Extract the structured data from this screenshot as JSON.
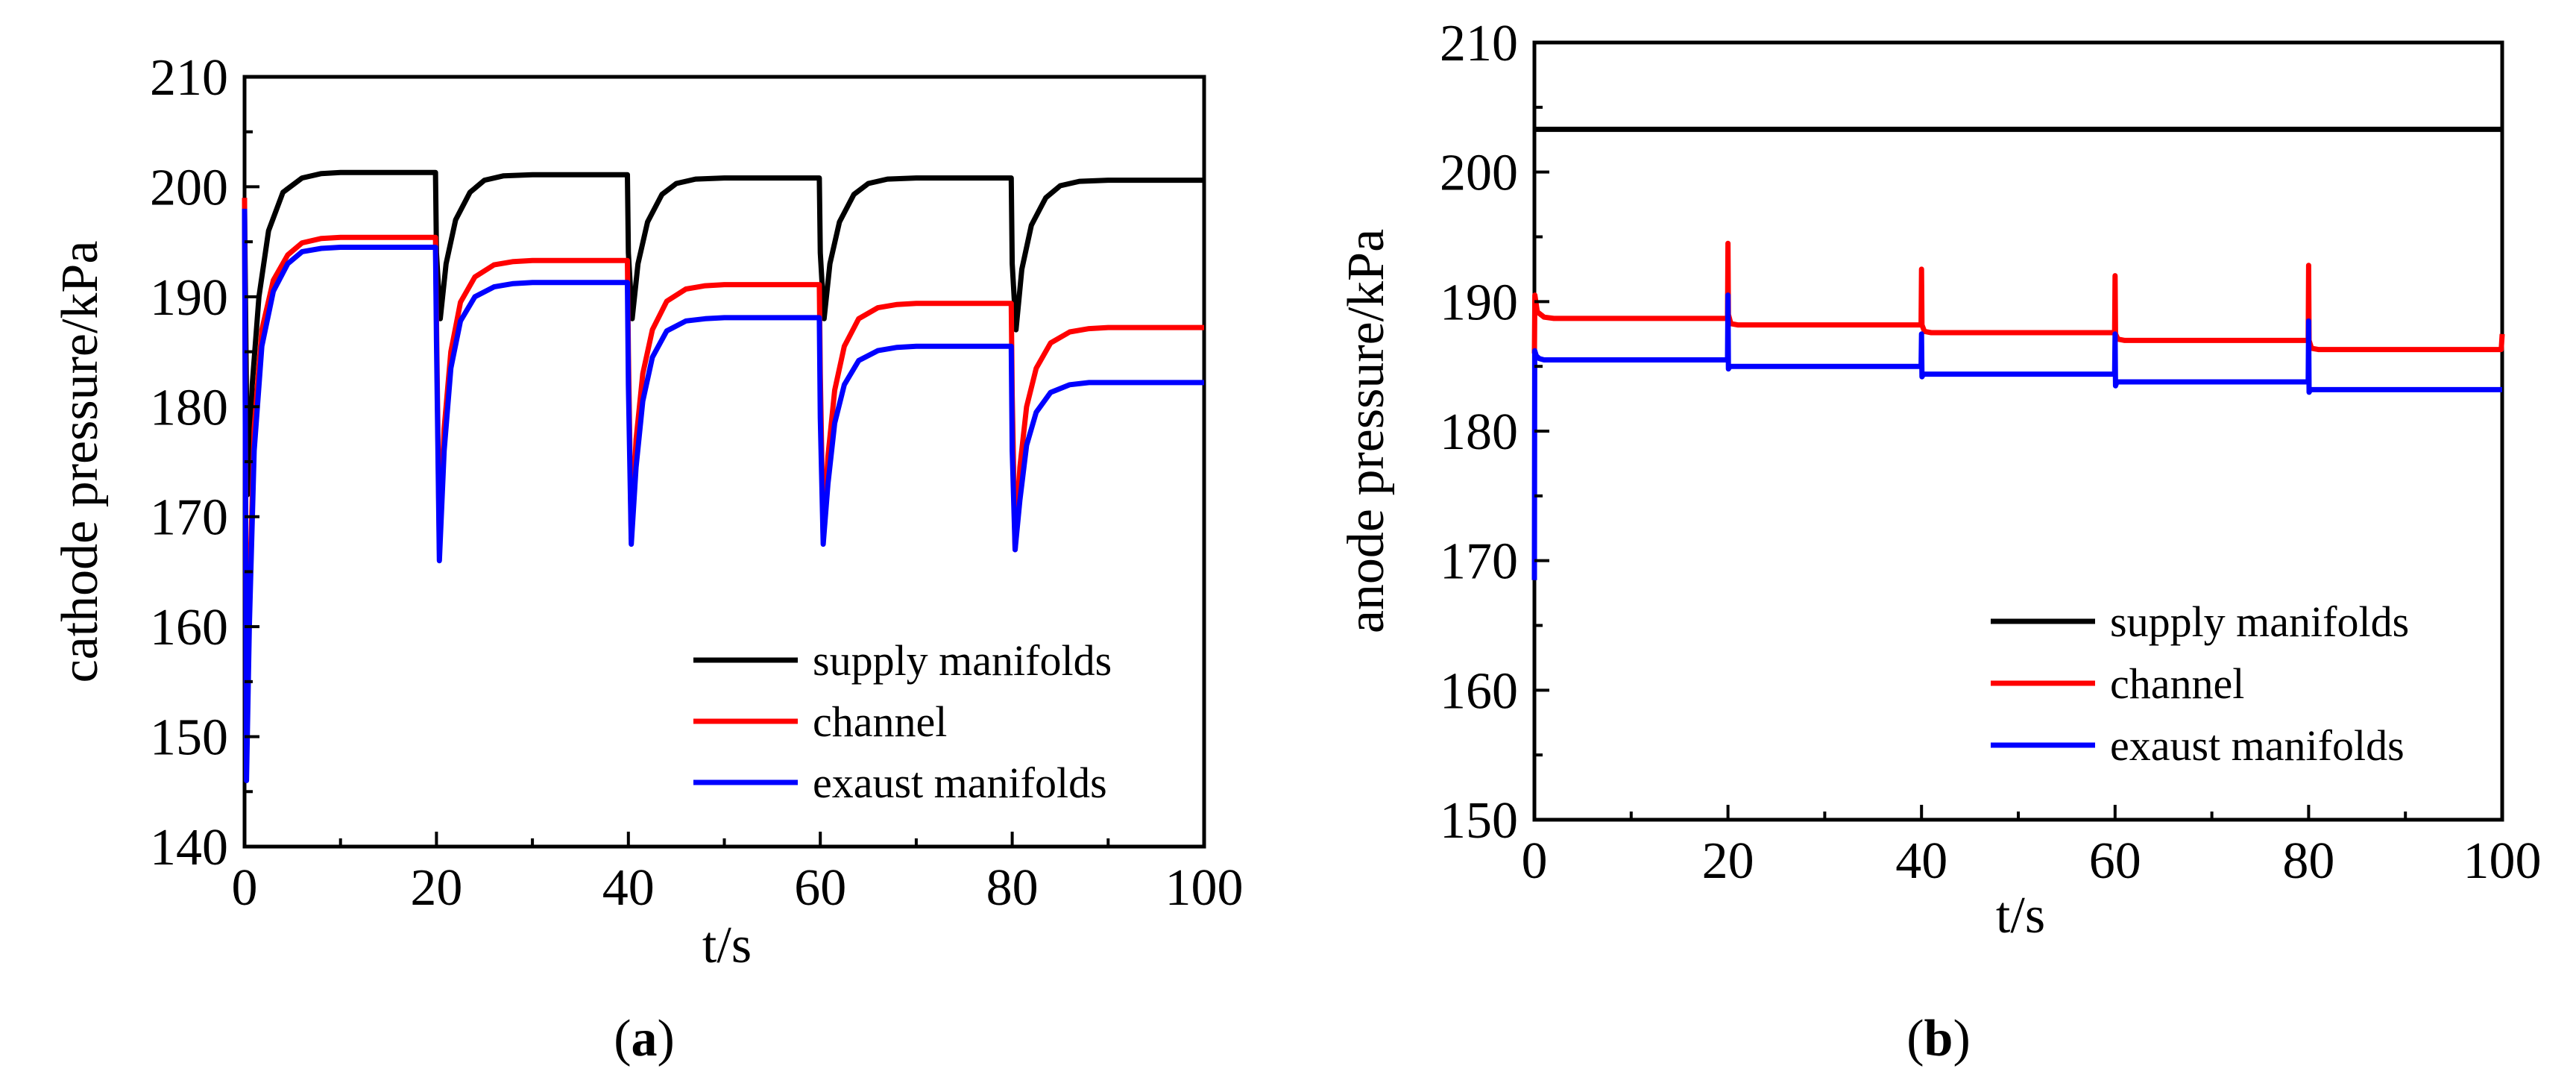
{
  "chart_data": [
    {
      "type": "line",
      "caption": {
        "open": "(",
        "letter": "a",
        "close": ")"
      },
      "xlabel": "t/s",
      "ylabel": "cathode pressure/kPa",
      "xlim": [
        0,
        100
      ],
      "ylim": [
        140,
        210
      ],
      "xticks": [
        "0",
        "20",
        "40",
        "60",
        "80",
        "100"
      ],
      "yticks": [
        "140",
        "150",
        "160",
        "170",
        "180",
        "190",
        "200",
        "210"
      ],
      "legend_position": "bottom-right",
      "series": [
        {
          "name": "supply manifolds",
          "color": "#000000",
          "x": [
            0,
            0.3,
            0.8,
            1.5,
            2.5,
            4,
            6,
            8,
            10,
            19.9,
            20,
            20.4,
            21,
            22,
            23.5,
            25,
            27,
            30,
            39.9,
            40,
            40.4,
            41,
            42,
            43.5,
            45,
            47,
            50,
            59.9,
            60,
            60.4,
            61,
            62,
            63.5,
            65,
            67,
            70,
            79.9,
            80,
            80.4,
            81,
            82,
            83.5,
            85,
            87,
            90,
            100
          ],
          "values": [
            198,
            172,
            182,
            190,
            196,
            199.5,
            200.8,
            201.2,
            201.3,
            201.3,
            194,
            188,
            193,
            197,
            199.5,
            200.6,
            201,
            201.1,
            201.1,
            194,
            188,
            193,
            196.8,
            199.3,
            200.3,
            200.7,
            200.8,
            200.8,
            194,
            188,
            193,
            196.8,
            199.3,
            200.3,
            200.7,
            200.8,
            200.8,
            193,
            187,
            192.5,
            196.5,
            199,
            200.1,
            200.5,
            200.6,
            200.6
          ]
        },
        {
          "name": "channel",
          "color": "#ff0000",
          "x": [
            0,
            0.2,
            0.5,
            1,
            1.8,
            3,
            4.5,
            6,
            8,
            10,
            19.9,
            20,
            20.3,
            20.8,
            21.5,
            22.5,
            24,
            26,
            28,
            30,
            39.9,
            40,
            40.3,
            40.8,
            41.5,
            42.5,
            44,
            46,
            48,
            50,
            59.9,
            60,
            60.3,
            60.8,
            61.5,
            62.5,
            64,
            66,
            68,
            70,
            79.9,
            80,
            80.3,
            80.8,
            81.5,
            82.5,
            84,
            86,
            88,
            90,
            100
          ],
          "values": [
            199,
            150,
            162,
            178,
            187,
            191.5,
            193.8,
            194.9,
            195.3,
            195.4,
            195.4,
            188,
            167,
            178,
            185,
            189.5,
            191.8,
            192.9,
            193.2,
            193.3,
            193.3,
            185,
            168,
            177,
            183,
            187,
            189.6,
            190.7,
            191,
            191.1,
            191.1,
            183,
            168,
            175.5,
            181.5,
            185.5,
            188,
            189,
            189.3,
            189.4,
            189.4,
            181,
            167,
            174.5,
            180,
            183.5,
            185.8,
            186.8,
            187.1,
            187.2,
            187.2
          ]
        },
        {
          "name": "exaust manifolds",
          "color": "#0000ff",
          "x": [
            0,
            0.2,
            0.5,
            1,
            1.8,
            3,
            4.5,
            6,
            8,
            10,
            19.9,
            20,
            20.3,
            20.8,
            21.5,
            22.5,
            24,
            26,
            28,
            30,
            39.9,
            40,
            40.3,
            40.8,
            41.5,
            42.5,
            44,
            46,
            48,
            50,
            59.9,
            60,
            60.3,
            60.8,
            61.5,
            62.5,
            64,
            66,
            68,
            70,
            79.9,
            80,
            80.3,
            80.8,
            81.5,
            82.5,
            84,
            86,
            88,
            90,
            100
          ],
          "values": [
            198,
            146,
            160,
            176,
            185.5,
            190.5,
            193,
            194.1,
            194.4,
            194.5,
            194.5,
            186,
            166,
            176,
            183.5,
            187.8,
            190,
            190.9,
            191.2,
            191.3,
            191.3,
            182,
            167.5,
            174.5,
            180.5,
            184.5,
            186.9,
            187.8,
            188,
            188.1,
            188.1,
            179,
            167.5,
            173,
            178.5,
            182,
            184.2,
            185.1,
            185.4,
            185.5,
            185.5,
            176,
            167,
            171.5,
            176.5,
            179.5,
            181.3,
            182,
            182.2,
            182.2,
            182.2
          ]
        }
      ]
    },
    {
      "type": "line",
      "caption": {
        "open": "(",
        "letter": "b",
        "close": ")"
      },
      "xlabel": "t/s",
      "ylabel": "anode pressure/kPa",
      "xlim": [
        0,
        100
      ],
      "ylim": [
        150,
        210
      ],
      "xticks": [
        "0",
        "20",
        "40",
        "60",
        "80",
        "100"
      ],
      "yticks": [
        "150",
        "160",
        "170",
        "180",
        "190",
        "200",
        "210"
      ],
      "legend_position": "bottom-right",
      "series": [
        {
          "name": "supply manifolds",
          "color": "#000000",
          "x": [
            0,
            100
          ],
          "values": [
            203.3,
            203.3
          ]
        },
        {
          "name": "channel",
          "color": "#ff0000",
          "x": [
            0,
            0.05,
            0.3,
            1,
            2,
            19.95,
            20,
            20.05,
            20.3,
            21,
            39.95,
            40,
            40.05,
            40.3,
            41,
            59.95,
            60,
            60.05,
            60.3,
            61,
            79.95,
            80,
            80.05,
            80.3,
            81,
            99.9,
            100
          ],
          "values": [
            186,
            190.5,
            189.2,
            188.8,
            188.7,
            188.7,
            194.5,
            189,
            188.3,
            188.2,
            188.2,
            192.5,
            188.2,
            187.7,
            187.6,
            187.6,
            192,
            187.5,
            187.1,
            187,
            187,
            192.8,
            187,
            186.4,
            186.3,
            186.3,
            187.5
          ]
        },
        {
          "name": "exaust manifolds",
          "color": "#0000ff",
          "x": [
            0,
            0.03,
            0.2,
            0.5,
            1,
            2,
            19.95,
            20,
            20.05,
            20.2,
            21,
            39.95,
            40,
            40.05,
            40.2,
            41,
            59.95,
            60,
            60.05,
            60.2,
            61,
            79.95,
            80,
            80.05,
            80.2,
            81,
            100
          ],
          "values": [
            168.5,
            186.2,
            185.8,
            185.6,
            185.5,
            185.5,
            185.5,
            190.5,
            184.8,
            185,
            185,
            185,
            187.5,
            184.2,
            184.4,
            184.4,
            184.4,
            187.5,
            183.5,
            183.8,
            183.8,
            183.8,
            188.5,
            183,
            183.2,
            183.2,
            183.2
          ]
        }
      ]
    }
  ]
}
